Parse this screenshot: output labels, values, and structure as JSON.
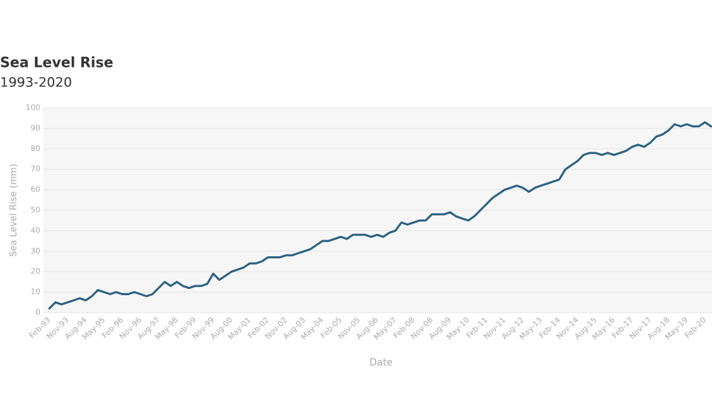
{
  "chart_data": {
    "type": "line",
    "title": "Sea Level Rise",
    "subtitle": "1993-2020",
    "y_label": "Sea Level Rise (mm)",
    "x_label": "Date",
    "color": "#2b6281",
    "grid": true,
    "ylim": [
      0,
      100
    ],
    "yticks": [
      0,
      10,
      20,
      30,
      40,
      50,
      60,
      70,
      80,
      90,
      100
    ],
    "categories": [
      "Feb-93",
      null,
      null,
      "Nov-93",
      null,
      null,
      "Aug-94",
      null,
      null,
      "May-95",
      null,
      null,
      "Feb-96",
      null,
      null,
      "Nov-96",
      null,
      null,
      "Aug-97",
      null,
      null,
      "May-98",
      null,
      null,
      "Feb-99",
      null,
      null,
      "Nov-99",
      null,
      null,
      "Aug-00",
      null,
      null,
      "May-01",
      null,
      null,
      "Feb-02",
      null,
      null,
      "Nov-02",
      null,
      null,
      "Aug-03",
      null,
      null,
      "May-04",
      null,
      null,
      "Feb-05",
      null,
      null,
      "Nov-05",
      null,
      null,
      "Aug-06",
      null,
      null,
      "May-07",
      null,
      null,
      "Feb-08",
      null,
      null,
      "Nov-08",
      null,
      null,
      "Aug-09",
      null,
      null,
      "May-10",
      null,
      null,
      "Feb-11",
      null,
      null,
      "Nov-11",
      null,
      null,
      "Aug-12",
      null,
      null,
      "May-13",
      null,
      null,
      "Feb-14",
      null,
      null,
      "Nov-14",
      null,
      null,
      "Aug-15",
      null,
      null,
      "May-16",
      null,
      null,
      "Feb-17",
      null,
      null,
      "Nov-17",
      null,
      null,
      "Aug-18",
      null,
      null,
      "May-19",
      null,
      null,
      "Feb-20",
      null
    ],
    "values": [
      2,
      5,
      4,
      5,
      6,
      7,
      6,
      8,
      11,
      10,
      9,
      10,
      9,
      9,
      10,
      9,
      8,
      9,
      12,
      15,
      13,
      15,
      13,
      12,
      13,
      13,
      14,
      19,
      16,
      18,
      20,
      21,
      22,
      24,
      24,
      25,
      27,
      27,
      27,
      28,
      28,
      29,
      30,
      31,
      33,
      35,
      35,
      36,
      37,
      36,
      38,
      38,
      38,
      37,
      38,
      37,
      39,
      40,
      44,
      43,
      44,
      45,
      45,
      48,
      48,
      48,
      49,
      47,
      46,
      45,
      47,
      50,
      53,
      56,
      58,
      60,
      61,
      62,
      61,
      59,
      61,
      62,
      63,
      64,
      65,
      70,
      72,
      74,
      77,
      78,
      78,
      77,
      78,
      77,
      78,
      79,
      81,
      82,
      81,
      83,
      86,
      87,
      89,
      92,
      91,
      92,
      91,
      91,
      93,
      91
    ]
  }
}
